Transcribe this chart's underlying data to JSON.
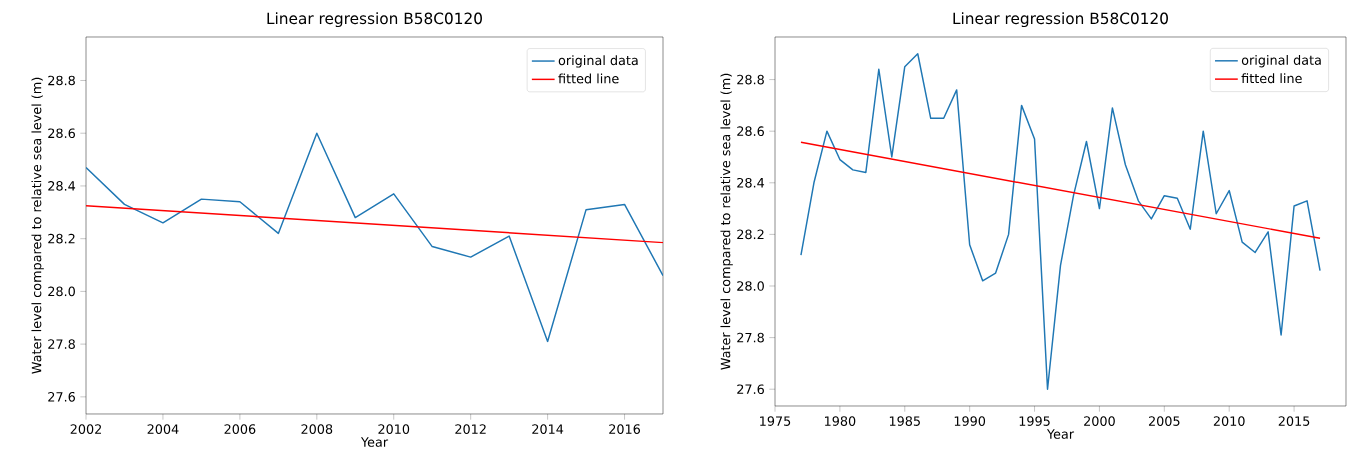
{
  "chart_data": [
    {
      "type": "line",
      "title": "Linear regression B58C0120",
      "xlabel": "Year",
      "ylabel": "Water level compared to relative sea level (m)",
      "series": [
        {
          "name": "original data",
          "color": "#1f77b4",
          "x": [
            2002,
            2003,
            2004,
            2005,
            2006,
            2007,
            2008,
            2009,
            2010,
            2011,
            2012,
            2013,
            2014,
            2015,
            2016,
            2017
          ],
          "values": [
            28.47,
            28.33,
            28.26,
            28.35,
            28.34,
            28.22,
            28.6,
            28.28,
            28.37,
            28.17,
            28.13,
            28.21,
            27.81,
            28.31,
            28.33,
            28.06
          ]
        },
        {
          "name": "fitted line",
          "color": "#ff0000",
          "x": [
            2002,
            2017
          ],
          "values": [
            28.325,
            28.185
          ]
        }
      ],
      "xlim": [
        2002,
        2017
      ],
      "ylim": [
        27.535,
        28.965
      ],
      "xticks": [
        2002,
        2004,
        2006,
        2008,
        2010,
        2012,
        2014,
        2016
      ],
      "yticks": [
        {
          "value": 27.6,
          "label": "27.6"
        },
        {
          "value": 27.8,
          "label": "27.8"
        },
        {
          "value": 28.0,
          "label": "28.0"
        },
        {
          "value": 28.2,
          "label": "28.2"
        },
        {
          "value": 28.4,
          "label": "28.4"
        },
        {
          "value": 28.6,
          "label": "28.6"
        },
        {
          "value": 28.8,
          "label": "28.8"
        }
      ],
      "legend": "top right",
      "grid": false,
      "line_style": "solid",
      "marker": "none"
    },
    {
      "type": "line",
      "title": "Linear regression B58C0120",
      "xlabel": "Year",
      "ylabel": "Water level compared to relative sea level (m)",
      "series": [
        {
          "name": "original data",
          "color": "#1f77b4",
          "x": [
            1977,
            1978,
            1979,
            1980,
            1981,
            1982,
            1983,
            1984,
            1985,
            1986,
            1987,
            1988,
            1989,
            1990,
            1991,
            1992,
            1993,
            1994,
            1995,
            1996,
            1997,
            1998,
            1999,
            2000,
            2001,
            2002,
            2003,
            2004,
            2005,
            2006,
            2007,
            2008,
            2009,
            2010,
            2011,
            2012,
            2013,
            2014,
            2015,
            2016,
            2017
          ],
          "values": [
            28.12,
            28.4,
            28.6,
            28.49,
            28.45,
            28.44,
            28.84,
            28.5,
            28.85,
            28.9,
            28.65,
            28.65,
            28.76,
            28.16,
            28.02,
            28.05,
            28.2,
            28.7,
            28.57,
            27.6,
            28.08,
            28.35,
            28.56,
            28.3,
            28.69,
            28.47,
            28.33,
            28.26,
            28.35,
            28.34,
            28.22,
            28.6,
            28.28,
            28.37,
            28.17,
            28.13,
            28.21,
            27.81,
            28.31,
            28.33,
            28.06
          ]
        },
        {
          "name": "fitted line",
          "color": "#ff0000",
          "x": [
            1977,
            2017
          ],
          "values": [
            28.557,
            28.185
          ]
        }
      ],
      "xlim": [
        1975,
        2019
      ],
      "ylim": [
        27.535,
        28.965
      ],
      "xticks": [
        1975,
        1980,
        1985,
        1990,
        1995,
        2000,
        2005,
        2010,
        2015
      ],
      "yticks": [
        {
          "value": 27.6,
          "label": "27.6"
        },
        {
          "value": 27.8,
          "label": "27.8"
        },
        {
          "value": 28.0,
          "label": "28.0"
        },
        {
          "value": 28.2,
          "label": "28.2"
        },
        {
          "value": 28.4,
          "label": "28.4"
        },
        {
          "value": 28.6,
          "label": "28.6"
        },
        {
          "value": 28.8,
          "label": "28.8"
        }
      ],
      "legend": "top right",
      "grid": false,
      "line_style": "solid",
      "marker": "none"
    }
  ]
}
